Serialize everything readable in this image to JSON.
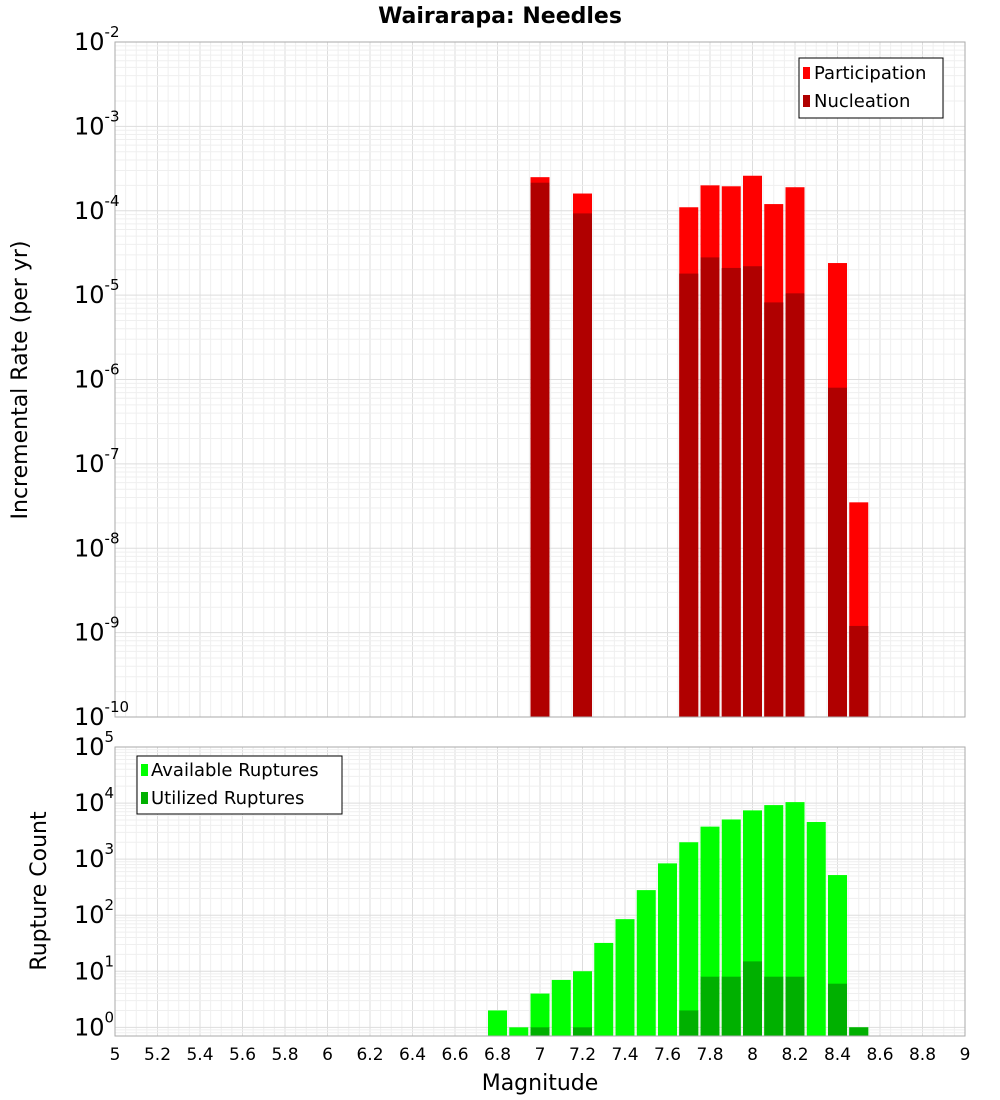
{
  "chart_data": [
    {
      "type": "bar",
      "title": "Wairarapa: Needles",
      "xlabel": "",
      "ylabel": "Incremental Rate (per yr)",
      "xlim": [
        5,
        9
      ],
      "ylim": [
        1e-10,
        0.01
      ],
      "yscale": "log",
      "grid": true,
      "legend_position": "top-right",
      "x": [
        7.0,
        7.1,
        7.2,
        7.3,
        7.4,
        7.5,
        7.6,
        7.7,
        7.8,
        7.9,
        8.0,
        8.1,
        8.2,
        8.3,
        8.4,
        8.5
      ],
      "series": [
        {
          "name": "Participation",
          "color": "#ff0000",
          "values": [
            0.00025,
            0,
            0.00016,
            0,
            0,
            0,
            0,
            0.00011,
            0.0002,
            0.000195,
            0.00026,
            0.00012,
            0.00019,
            0,
            2.4e-05,
            3.5e-08
          ]
        },
        {
          "name": "Nucleation",
          "color": "#b00000",
          "values": [
            0.000215,
            0,
            9.3e-05,
            0,
            0,
            0,
            0,
            1.8e-05,
            2.8e-05,
            2.1e-05,
            2.2e-05,
            8.2e-06,
            1.05e-05,
            0,
            8e-07,
            1.2e-09
          ]
        }
      ],
      "yticks": [
        {
          "base": "10",
          "exp": "-2",
          "value": 0.01
        },
        {
          "base": "10",
          "exp": "-3",
          "value": 0.001
        },
        {
          "base": "10",
          "exp": "-4",
          "value": 0.0001
        },
        {
          "base": "10",
          "exp": "-5",
          "value": 1e-05
        },
        {
          "base": "10",
          "exp": "-6",
          "value": 1e-06
        },
        {
          "base": "10",
          "exp": "-7",
          "value": 1e-07
        },
        {
          "base": "10",
          "exp": "-8",
          "value": 1e-08
        },
        {
          "base": "10",
          "exp": "-9",
          "value": 1e-09
        },
        {
          "base": "10",
          "exp": "-10",
          "value": 1e-10
        }
      ]
    },
    {
      "type": "bar",
      "title": "",
      "xlabel": "Magnitude",
      "ylabel": "Rupture Count",
      "xlim": [
        5,
        9
      ],
      "ylim": [
        0.7,
        100000.0
      ],
      "yscale": "log",
      "grid": true,
      "legend_position": "top-left",
      "x": [
        6.8,
        6.9,
        7.0,
        7.1,
        7.2,
        7.3,
        7.4,
        7.5,
        7.6,
        7.7,
        7.8,
        7.9,
        8.0,
        8.1,
        8.2,
        8.3,
        8.4,
        8.5
      ],
      "series": [
        {
          "name": "Available Ruptures",
          "color": "#00ff00",
          "values": [
            2,
            1,
            4,
            7,
            10,
            32,
            85,
            280,
            840,
            2000,
            3800,
            5100,
            7400,
            9200,
            10400,
            4600,
            520,
            1
          ]
        },
        {
          "name": "Utilized Ruptures",
          "color": "#00b000",
          "values": [
            0,
            0,
            1,
            0,
            1,
            0,
            0,
            0,
            0,
            2,
            8,
            8,
            15,
            8,
            8,
            0,
            6,
            1
          ]
        }
      ],
      "yticks": [
        {
          "base": "10",
          "exp": "5",
          "value": 100000.0
        },
        {
          "base": "10",
          "exp": "4",
          "value": 10000.0
        },
        {
          "base": "10",
          "exp": "3",
          "value": 1000.0
        },
        {
          "base": "10",
          "exp": "2",
          "value": 100.0
        },
        {
          "base": "10",
          "exp": "1",
          "value": 10.0
        },
        {
          "base": "10",
          "exp": "0",
          "value": 1
        }
      ],
      "xticks": [
        "5",
        "5.2",
        "5.4",
        "5.6",
        "5.8",
        "6",
        "6.2",
        "6.4",
        "6.6",
        "6.8",
        "7",
        "7.2",
        "7.4",
        "7.6",
        "7.8",
        "8",
        "8.2",
        "8.4",
        "8.6",
        "8.8",
        "9"
      ]
    }
  ]
}
